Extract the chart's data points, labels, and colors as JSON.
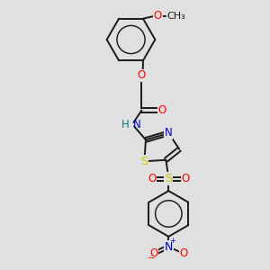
{
  "background_color": "#e0e0e0",
  "bond_color": "#1a1a1a",
  "O_color": "#ff0000",
  "N_color": "#0000cc",
  "S_color": "#cccc00",
  "H_color": "#008080",
  "line_width": 1.4,
  "font_size": 8.5,
  "fig_size": [
    3.0,
    3.0
  ],
  "dpi": 100,
  "xlim": [
    0.2,
    0.9
  ],
  "ylim": [
    0.02,
    1.02
  ]
}
